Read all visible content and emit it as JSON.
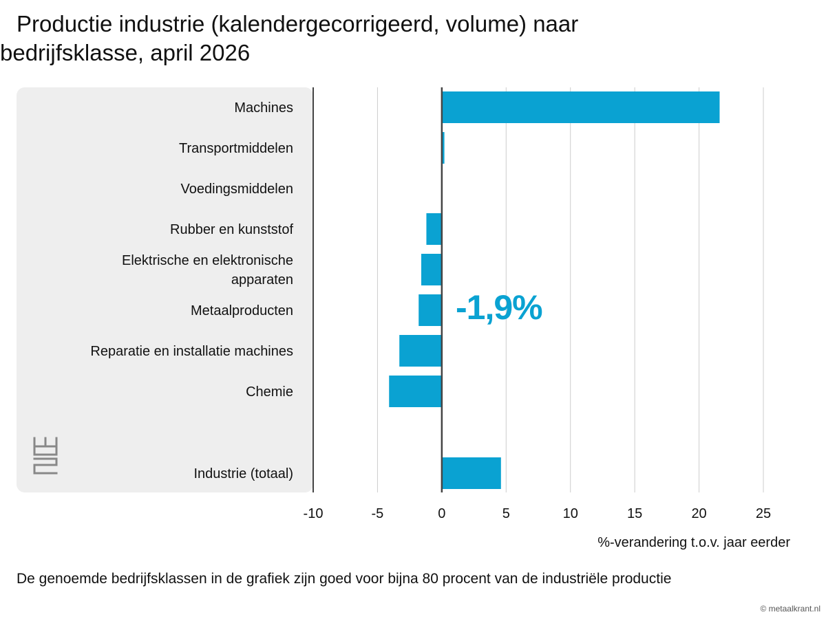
{
  "title": {
    "line1": "Productie industrie (kalendergecorrigeerd, volume) naar",
    "line2": "bedrijfsklasse, april 2026"
  },
  "callout": "-1,9%",
  "footnote": "De genoemde bedrijfsklassen in de grafiek zijn goed voor bijna 80 procent van de industriële productie",
  "watermark": "© metaalkrant.nl",
  "logo": "cbs-logo-icon",
  "colors": {
    "bar": "#0aa2d2",
    "panel": "#eeeeee",
    "grid": "#cccccc",
    "axis": "#444444"
  },
  "chart_data": {
    "type": "bar",
    "orientation": "horizontal",
    "categories": [
      [
        "Machines"
      ],
      [
        "Transportmiddelen"
      ],
      [
        "Voedingsmiddelen"
      ],
      [
        "Rubber en kunststof"
      ],
      [
        "Elektrische en elektronische",
        "apparaten"
      ],
      [
        "Metaalproducten"
      ],
      [
        "Reparatie en installatie machines"
      ],
      [
        "Chemie"
      ],
      [
        "Industrie (totaal)"
      ]
    ],
    "values": [
      21.6,
      0.2,
      0.0,
      -1.2,
      -1.6,
      -1.8,
      -3.3,
      -4.1,
      4.6
    ],
    "xlim": [
      -10,
      25
    ],
    "xticks": [
      "-10",
      "-5",
      "0",
      "5",
      "10",
      "15",
      "20",
      "25"
    ],
    "xlabel": "%-verandering t.o.v. jaar eerder",
    "grid": "vertical"
  }
}
